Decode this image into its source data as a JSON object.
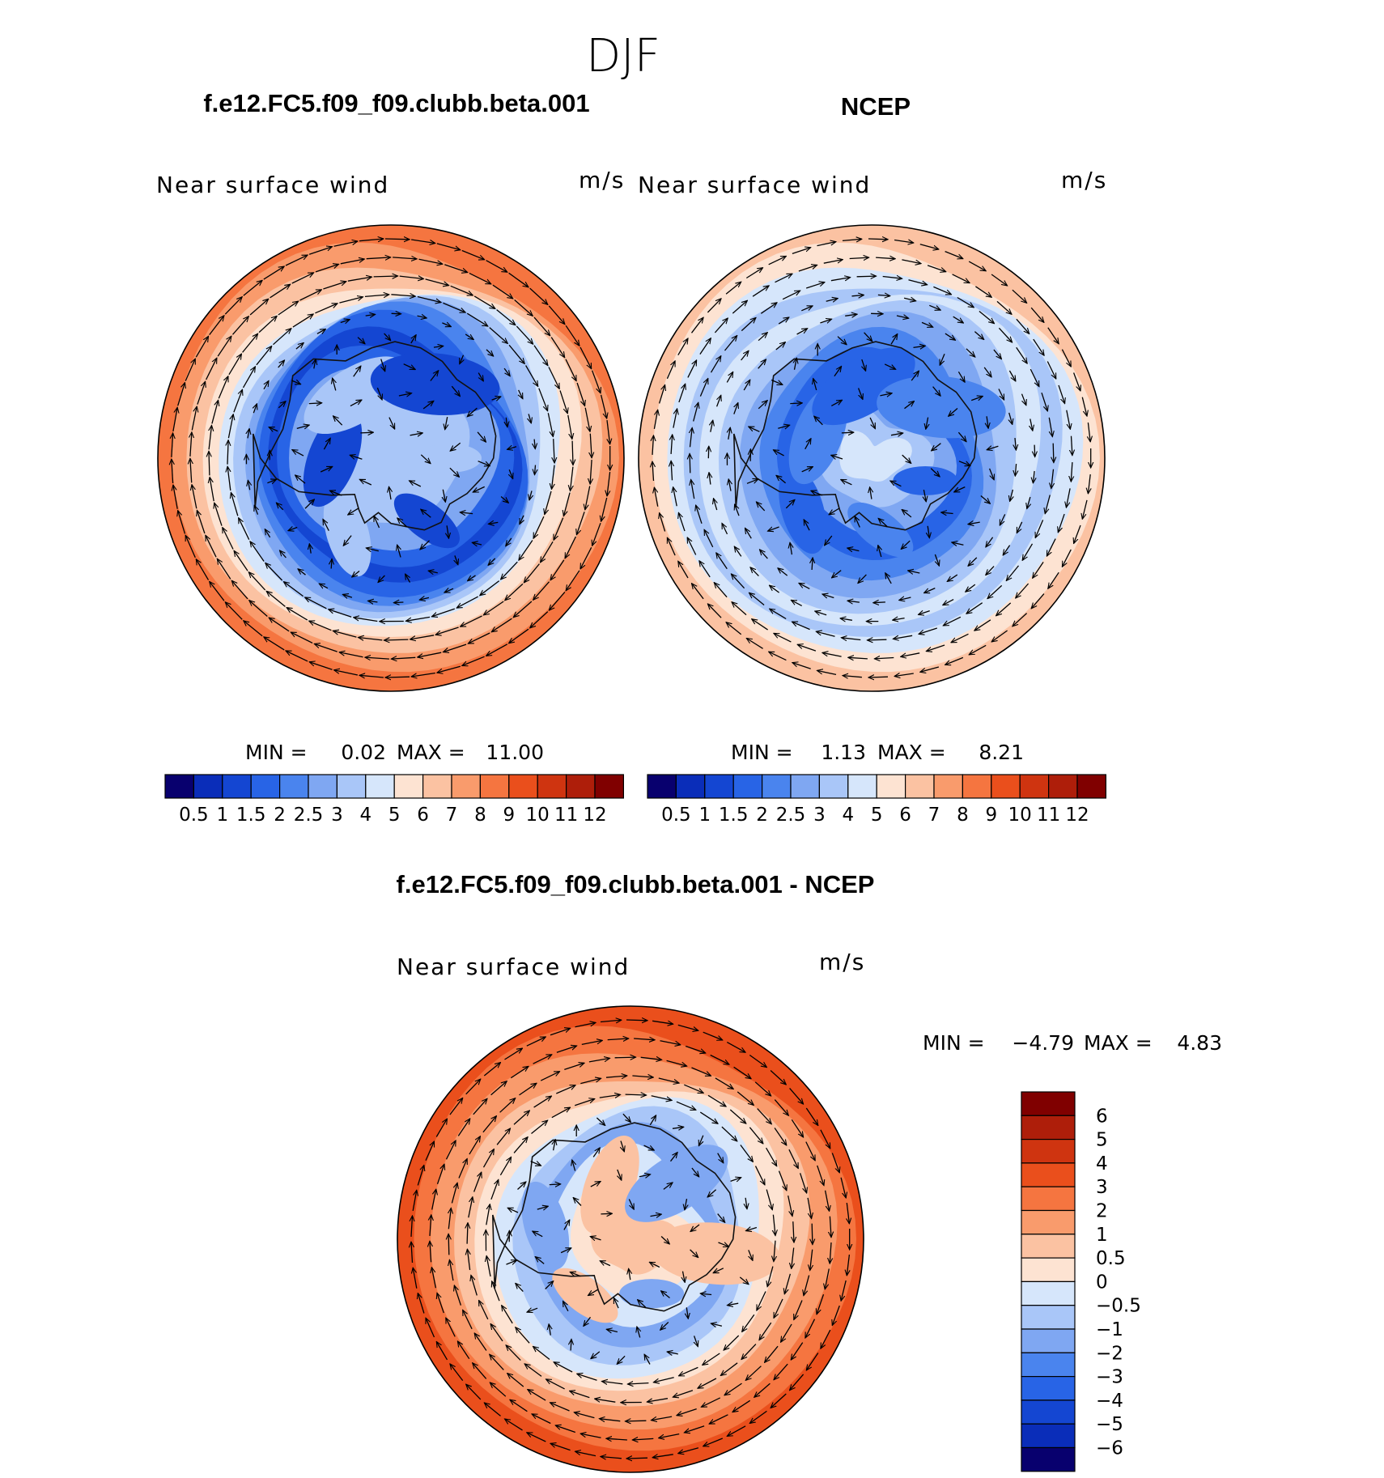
{
  "season": "DJF",
  "titles": {
    "model": "f.e12.FC5.f09_f09.clubb.beta.001",
    "obs": "NCEP",
    "diff": "f.e12.FC5.f09_f09.clubb.beta.001 - NCEP"
  },
  "colors": {
    "fill_levels": [
      "#08006e",
      "#0a2db9",
      "#1446d2",
      "#2864e6",
      "#4a84ee",
      "#7fa7f2",
      "#a9c6f8",
      "#d6e6fb",
      "#fde3d2",
      "#fbc2a2",
      "#f99b6c",
      "#f57540",
      "#ea4f1c",
      "#cf3410",
      "#ae1e0a",
      "#800000"
    ],
    "coast": "#111111",
    "arrow": "#000000"
  },
  "panels": [
    {
      "id": "model",
      "field": "Near surface wind",
      "units": "m/s",
      "min_label": "MIN =",
      "min": "0.02",
      "max_label": "MAX =",
      "max": "11.00",
      "pattern": "model"
    },
    {
      "id": "obs",
      "field": "Near surface wind",
      "units": "m/s",
      "min_label": "MIN =",
      "min": "1.13",
      "max_label": "MAX =",
      "max": "8.21",
      "pattern": "obs"
    },
    {
      "id": "diff",
      "field": "Near surface wind",
      "units": "m/s",
      "min_label": "MIN =",
      "min": "−4.79",
      "max_label": "MAX =",
      "max": "4.83",
      "pattern": "diff"
    }
  ],
  "chart_data": [
    {
      "type": "heatmap",
      "title": "f.e12.FC5.f09_f09.clubb.beta.001",
      "subtitle": "Near surface wind",
      "units": "m/s",
      "projection": "south polar stereographic",
      "min": 0.02,
      "max": 11.0,
      "levels": [
        0.5,
        1,
        1.5,
        2,
        2.5,
        3,
        4,
        5,
        6,
        7,
        8,
        9,
        10,
        11,
        12
      ],
      "tick_labels": [
        "0.5",
        "1",
        "1.5",
        "2",
        "2.5",
        "3",
        "4",
        "5",
        "6",
        "7",
        "8",
        "9",
        "10",
        "11",
        "12"
      ],
      "colorbar": "horizontal"
    },
    {
      "type": "heatmap",
      "title": "NCEP",
      "subtitle": "Near surface wind",
      "units": "m/s",
      "projection": "south polar stereographic",
      "min": 1.13,
      "max": 8.21,
      "levels": [
        0.5,
        1,
        1.5,
        2,
        2.5,
        3,
        4,
        5,
        6,
        7,
        8,
        9,
        10,
        11,
        12
      ],
      "tick_labels": [
        "0.5",
        "1",
        "1.5",
        "2",
        "2.5",
        "3",
        "4",
        "5",
        "6",
        "7",
        "8",
        "9",
        "10",
        "11",
        "12"
      ],
      "colorbar": "horizontal"
    },
    {
      "type": "heatmap",
      "title": "f.e12.FC5.f09_f09.clubb.beta.001 - NCEP",
      "subtitle": "Near surface wind",
      "units": "m/s",
      "projection": "south polar stereographic",
      "min": -4.79,
      "max": 4.83,
      "levels": [
        -6,
        -5,
        -4,
        -3,
        -2,
        -1,
        -0.5,
        0,
        0.5,
        1,
        2,
        3,
        4,
        5,
        6
      ],
      "tick_labels": [
        "6",
        "5",
        "4",
        "3",
        "2",
        "1",
        "0.5",
        "0",
        "−0.5",
        "−1",
        "−2",
        "−3",
        "−4",
        "−5",
        "−6"
      ],
      "colorbar": "vertical"
    }
  ]
}
